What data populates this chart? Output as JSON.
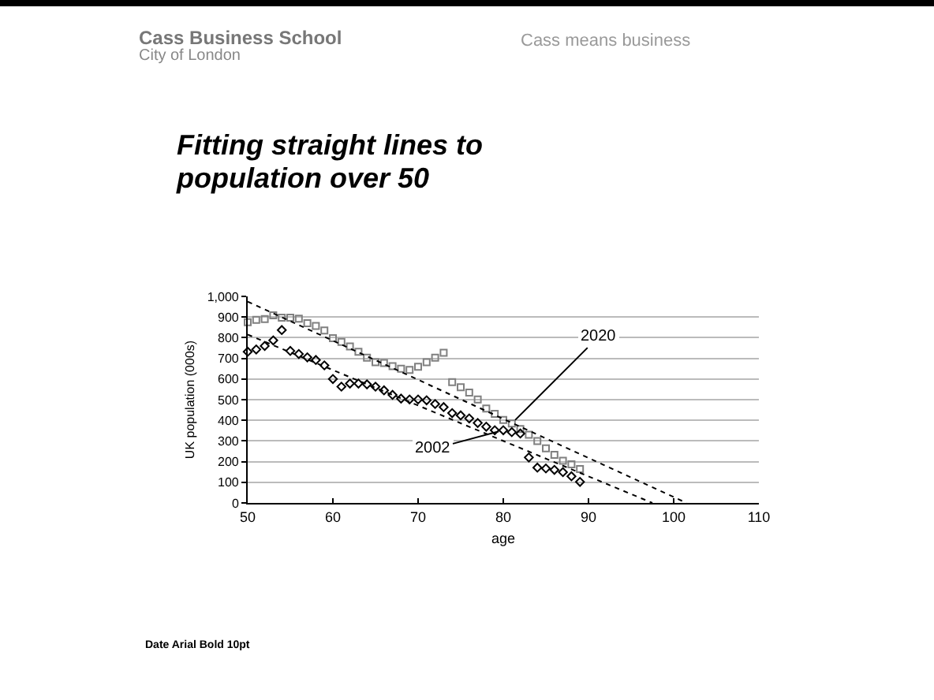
{
  "chart_data": {
    "type": "scatter",
    "title": "Fitting straight lines to population over 50",
    "xlabel": "age",
    "ylabel": "UK population (000s)",
    "x": [
      50,
      51,
      52,
      53,
      54,
      55,
      56,
      57,
      58,
      59,
      60,
      61,
      62,
      63,
      64,
      65,
      66,
      67,
      68,
      69,
      70,
      71,
      72,
      73,
      74,
      75,
      76,
      77,
      78,
      79,
      80,
      81,
      82,
      83,
      84,
      85,
      86,
      87,
      88,
      89
    ],
    "series": [
      {
        "name": "2020",
        "color": "#808080",
        "marker": "square",
        "values": [
          875,
          886,
          890,
          908,
          897,
          897,
          892,
          870,
          857,
          835,
          798,
          780,
          758,
          732,
          703,
          681,
          677,
          662,
          650,
          644,
          659,
          681,
          703,
          727,
          585,
          560,
          534,
          501,
          457,
          431,
          402,
          385,
          358,
          330,
          300,
          264,
          233,
          204,
          187,
          164
        ]
      },
      {
        "name": "2002",
        "color": "#000000",
        "marker": "diamond",
        "values": [
          732,
          743,
          760,
          787,
          837,
          736,
          721,
          705,
          692,
          666,
          600,
          563,
          578,
          578,
          574,
          563,
          545,
          523,
          505,
          501,
          501,
          497,
          479,
          464,
          435,
          424,
          409,
          387,
          369,
          352,
          352,
          343,
          336,
          220,
          171,
          167,
          160,
          149,
          129,
          102
        ]
      },
      {
        "type": "line",
        "color": "#000000",
        "marker": "none",
        "line_style": "dotted",
        "x": [
          50,
          101.5
        ],
        "values": [
          975,
          0
        ]
      },
      {
        "type": "line",
        "color": "#000000",
        "marker": "none",
        "line_style": "dotted",
        "x": [
          50,
          97.5
        ],
        "values": [
          815,
          0
        ]
      }
    ],
    "xlim": [
      50,
      110
    ],
    "xticks": [
      50,
      60,
      70,
      80,
      90,
      100,
      110
    ],
    "ylim": [
      0,
      1000
    ],
    "yticks": [
      0,
      100,
      200,
      300,
      400,
      500,
      600,
      700,
      800,
      900,
      {
        "value": 1000,
        "label": "1,000"
      }
    ],
    "grid": "y",
    "legend": false,
    "annotations": [
      "Cass Business School",
      "City of London",
      "Cass means business",
      "Date Arial Bold 10pt"
    ]
  }
}
